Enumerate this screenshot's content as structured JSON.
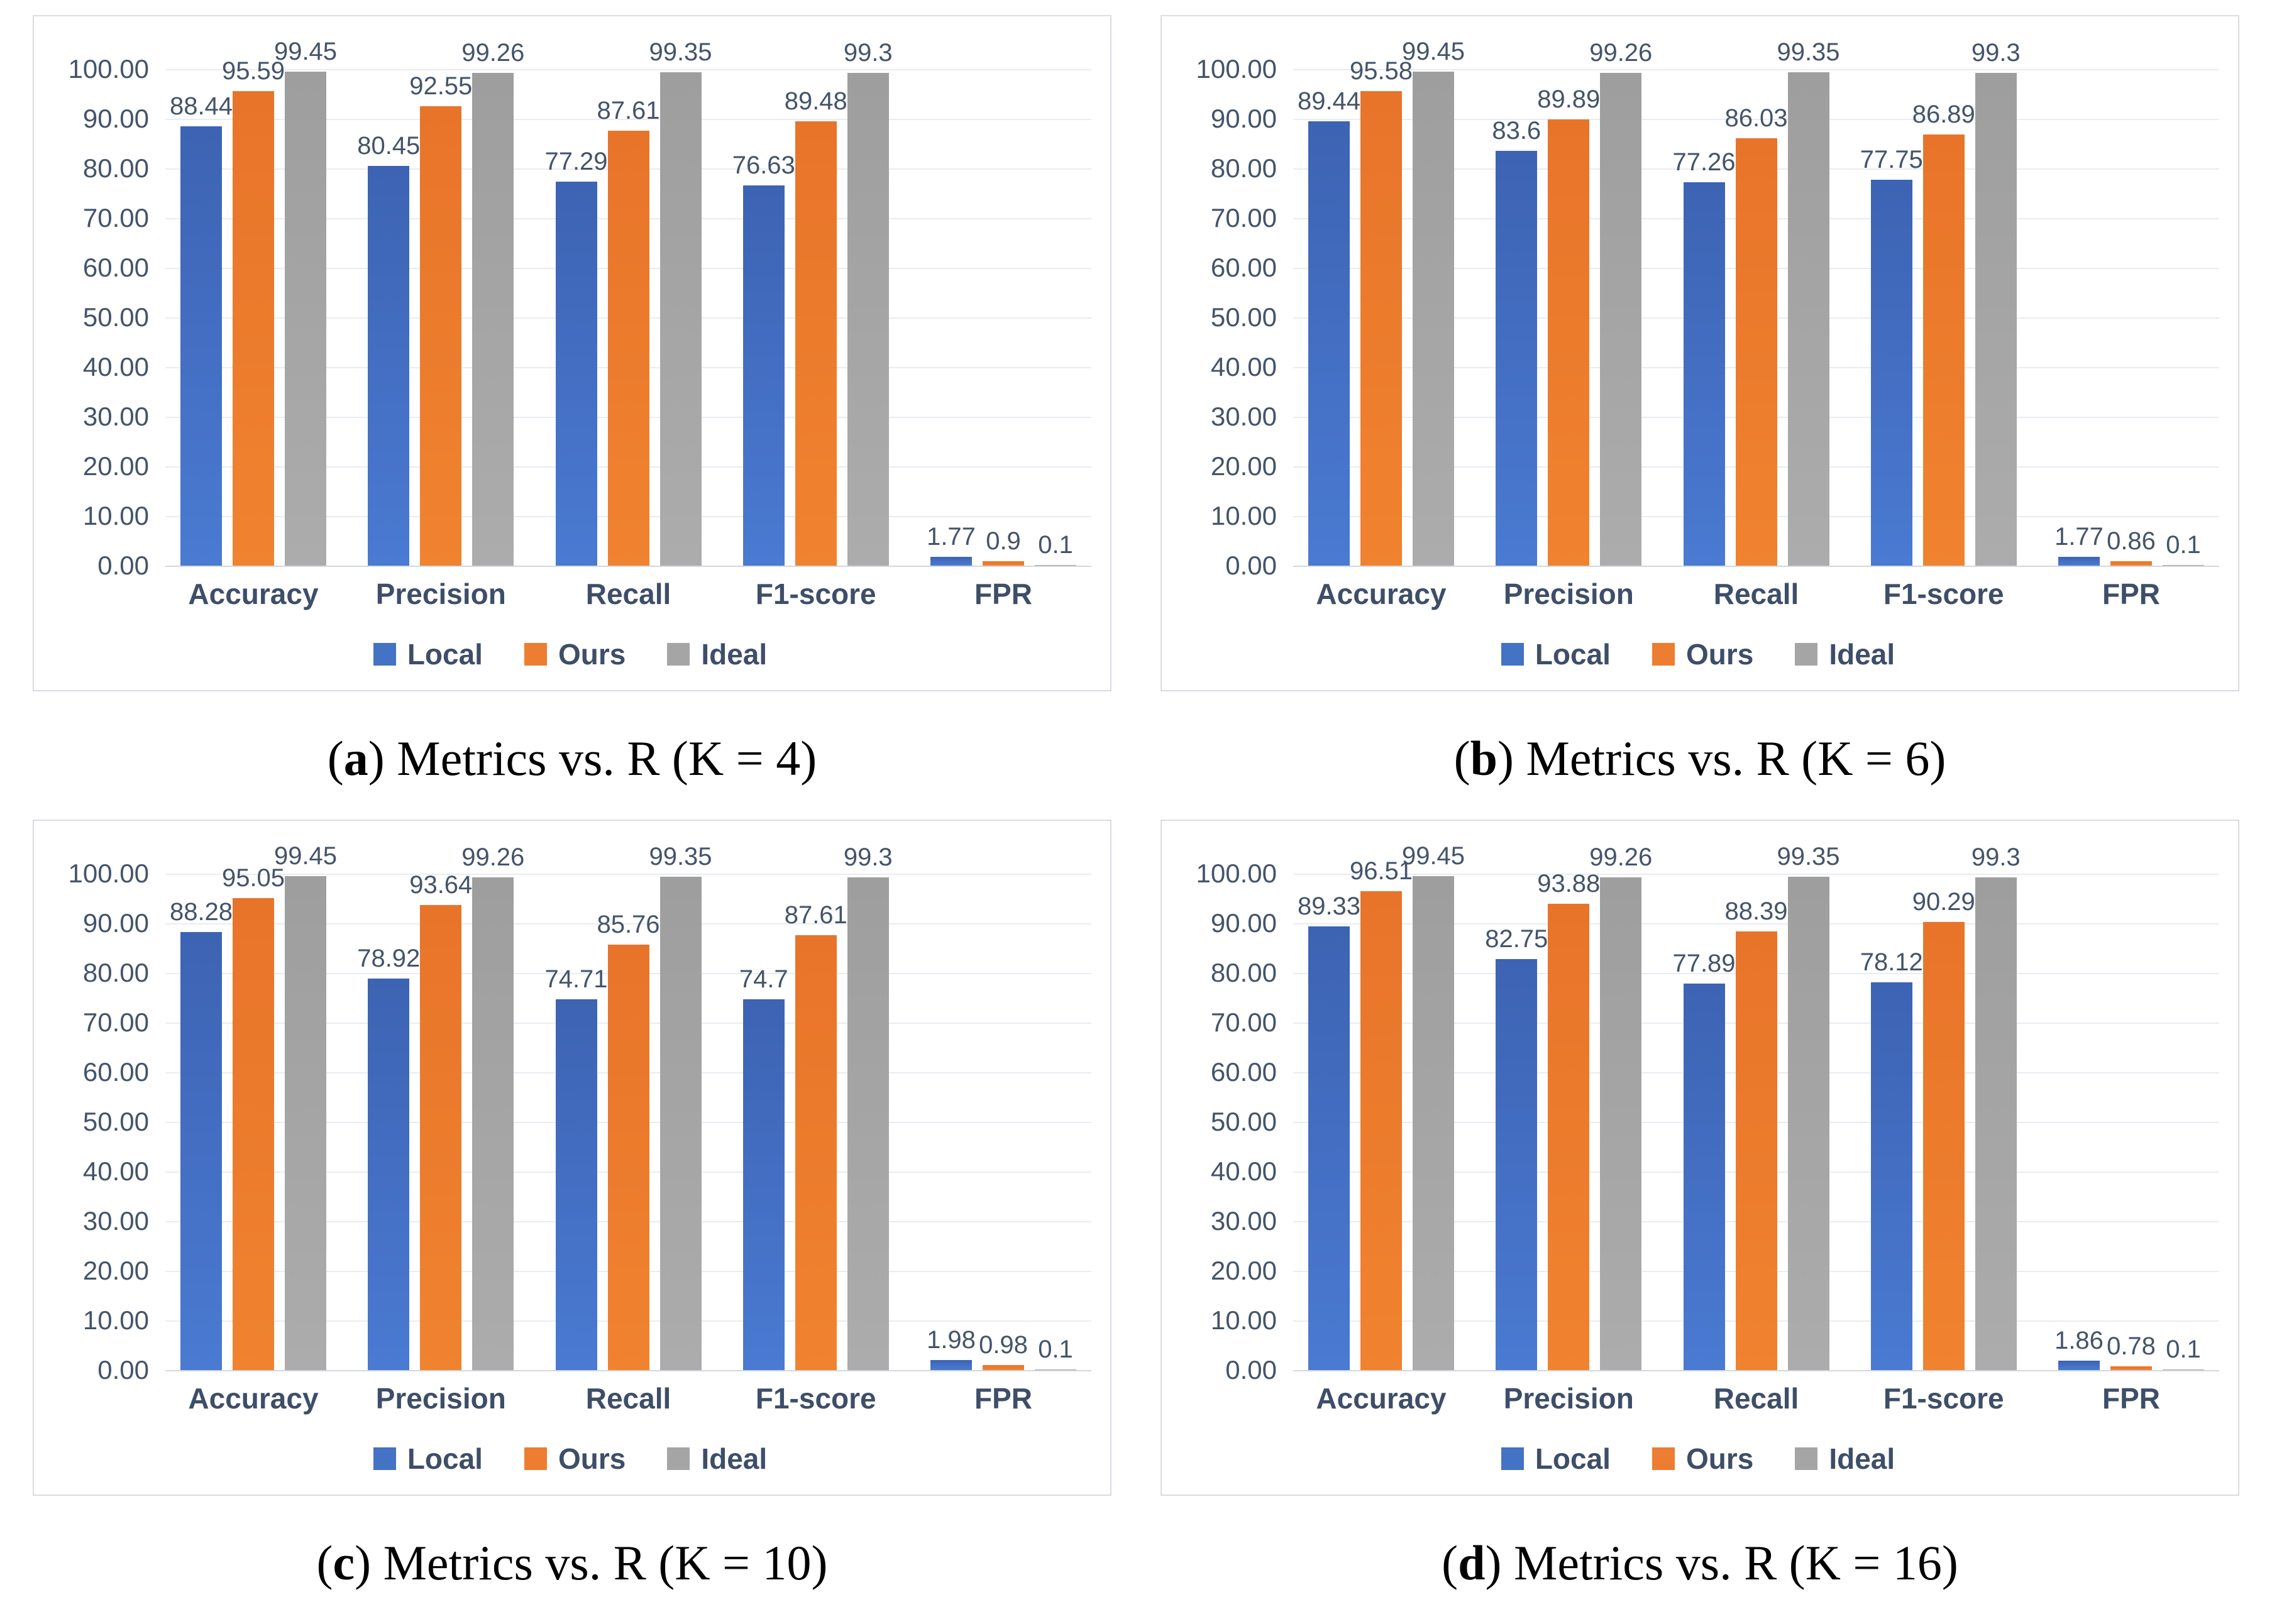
{
  "colors": {
    "local": "#4472C4",
    "ours": "#ED7D31",
    "ideal": "#A5A5A5",
    "axis_text": "#44546A",
    "gridline": "#E9ECF2"
  },
  "axis": {
    "ticks": [
      "100.00",
      "90.00",
      "80.00",
      "70.00",
      "60.00",
      "50.00",
      "40.00",
      "30.00",
      "20.00",
      "10.00",
      "0.00"
    ]
  },
  "legend": [
    {
      "name": "Local",
      "color": "#4472C4"
    },
    {
      "name": "Ours",
      "color": "#ED7D31"
    },
    {
      "name": "Ideal",
      "color": "#A5A5A5"
    }
  ],
  "caption_open": "(",
  "caption_close": ") ",
  "chart_data": [
    {
      "type": "bar",
      "label": "a",
      "caption": "Metrics vs. R (K = 4)",
      "categories": [
        "Accuracy",
        "Precision",
        "Recall",
        "F1-score",
        "FPR"
      ],
      "ylim": [
        0,
        100
      ],
      "grid": true,
      "legend_position": "bottom",
      "series": [
        {
          "name": "Local",
          "values": [
            88.44,
            80.45,
            77.29,
            76.63,
            1.77
          ],
          "labels": [
            "88.44",
            "80.45",
            "77.29",
            "76.63",
            "1.77"
          ]
        },
        {
          "name": "Ours",
          "values": [
            95.59,
            92.55,
            87.61,
            89.48,
            0.9
          ],
          "labels": [
            "95.59",
            "92.55",
            "87.61",
            "89.48",
            "0.9"
          ]
        },
        {
          "name": "Ideal",
          "values": [
            99.45,
            99.26,
            99.35,
            99.3,
            0.1
          ],
          "labels": [
            "99.45",
            "99.26",
            "99.35",
            "99.3",
            "0.1"
          ]
        }
      ]
    },
    {
      "type": "bar",
      "label": "b",
      "caption": "Metrics vs. R (K = 6)",
      "categories": [
        "Accuracy",
        "Precision",
        "Recall",
        "F1-score",
        "FPR"
      ],
      "ylim": [
        0,
        100
      ],
      "grid": true,
      "legend_position": "bottom",
      "series": [
        {
          "name": "Local",
          "values": [
            89.44,
            83.6,
            77.26,
            77.75,
            1.77
          ],
          "labels": [
            "89.44",
            "83.6",
            "77.26",
            "77.75",
            "1.77"
          ]
        },
        {
          "name": "Ours",
          "values": [
            95.58,
            89.89,
            86.03,
            86.89,
            0.86
          ],
          "labels": [
            "95.58",
            "89.89",
            "86.03",
            "86.89",
            "0.86"
          ]
        },
        {
          "name": "Ideal",
          "values": [
            99.45,
            99.26,
            99.35,
            99.3,
            0.1
          ],
          "labels": [
            "99.45",
            "99.26",
            "99.35",
            "99.3",
            "0.1"
          ]
        }
      ]
    },
    {
      "type": "bar",
      "label": "c",
      "caption": "Metrics vs. R (K = 10)",
      "categories": [
        "Accuracy",
        "Precision",
        "Recall",
        "F1-score",
        "FPR"
      ],
      "ylim": [
        0,
        100
      ],
      "grid": true,
      "legend_position": "bottom",
      "series": [
        {
          "name": "Local",
          "values": [
            88.28,
            78.92,
            74.71,
            74.7,
            1.98
          ],
          "labels": [
            "88.28",
            "78.92",
            "74.71",
            "74.7",
            "1.98"
          ]
        },
        {
          "name": "Ours",
          "values": [
            95.05,
            93.64,
            85.76,
            87.61,
            0.98
          ],
          "labels": [
            "95.05",
            "93.64",
            "85.76",
            "87.61",
            "0.98"
          ]
        },
        {
          "name": "Ideal",
          "values": [
            99.45,
            99.26,
            99.35,
            99.3,
            0.1
          ],
          "labels": [
            "99.45",
            "99.26",
            "99.35",
            "99.3",
            "0.1"
          ]
        }
      ]
    },
    {
      "type": "bar",
      "label": "d",
      "caption": "Metrics vs. R (K = 16)",
      "categories": [
        "Accuracy",
        "Precision",
        "Recall",
        "F1-score",
        "FPR"
      ],
      "ylim": [
        0,
        100
      ],
      "grid": true,
      "legend_position": "bottom",
      "series": [
        {
          "name": "Local",
          "values": [
            89.33,
            82.75,
            77.89,
            78.12,
            1.86
          ],
          "labels": [
            "89.33",
            "82.75",
            "77.89",
            "78.12",
            "1.86"
          ]
        },
        {
          "name": "Ours",
          "values": [
            96.51,
            93.88,
            88.39,
            90.29,
            0.78
          ],
          "labels": [
            "96.51",
            "93.88",
            "88.39",
            "90.29",
            "0.78"
          ]
        },
        {
          "name": "Ideal",
          "values": [
            99.45,
            99.26,
            99.35,
            99.3,
            0.1
          ],
          "labels": [
            "99.45",
            "99.26",
            "99.35",
            "99.3",
            "0.1"
          ]
        }
      ]
    }
  ]
}
